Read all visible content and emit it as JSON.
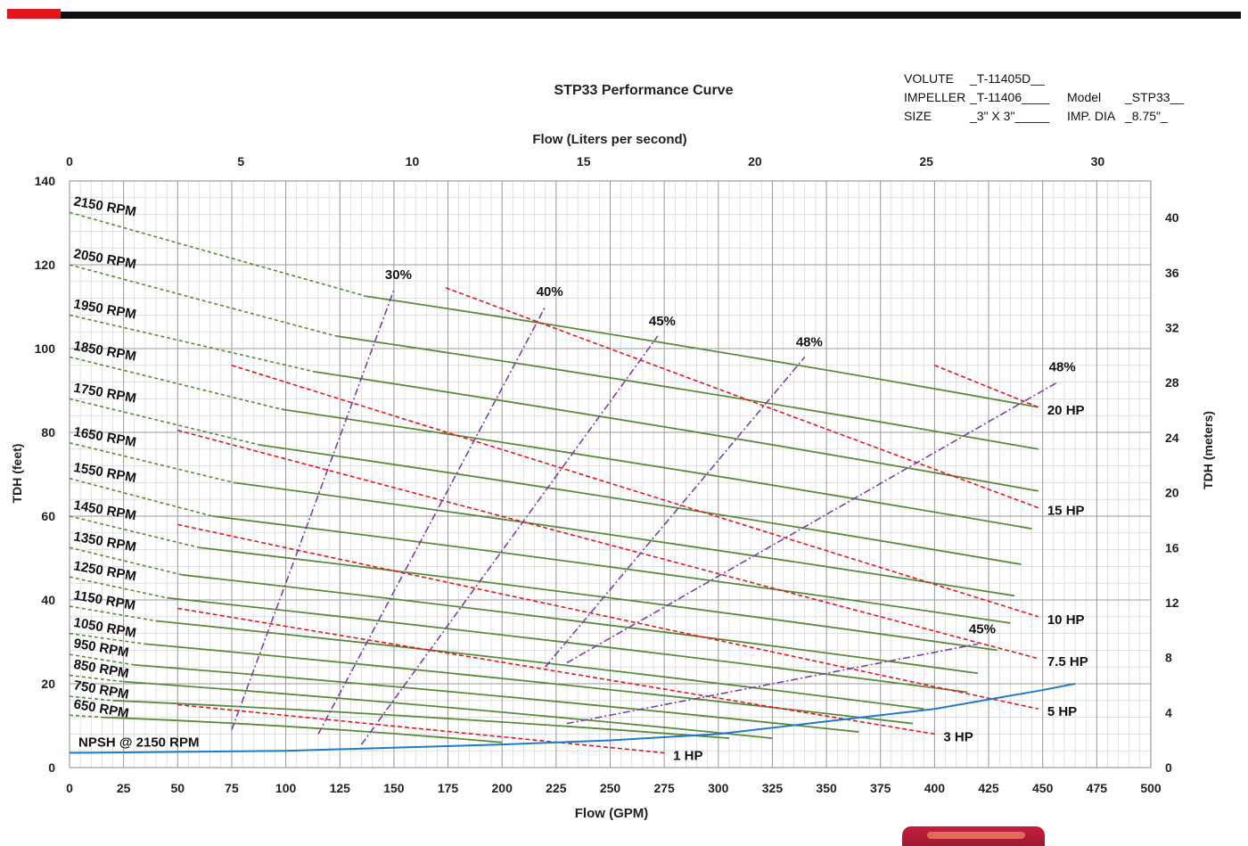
{
  "spec_block": {
    "volute_label": "VOLUTE",
    "volute_value": "_T-11405D__",
    "impeller_label": "IMPELLER",
    "impeller_value": "_T-11406____",
    "size_label": "SIZE",
    "size_value": "_3\" X 3\"_____",
    "model_label": "Model",
    "model_value": "_STP33__",
    "impdia_label": "IMP. DIA",
    "impdia_value": "_8.75\"_"
  },
  "colors": {
    "rpm_curve": "#5a8a3a",
    "hp_curve": "#e8151b",
    "efficiency_curve": "#7b3fa8",
    "npsh_curve": "#1f7ac8",
    "grid": "#cfcfcf",
    "grid_major": "#9a9a9a"
  },
  "chart_data": {
    "type": "line",
    "title": "STP33 Performance Curve",
    "xlabel": "Flow (GPM)",
    "xlabel_top": "Flow (Liters per second)",
    "ylabel": "TDH (feet)",
    "ylabel_right": "TDH (meters)",
    "xlim": [
      0,
      500
    ],
    "ylim": [
      0,
      140
    ],
    "xlim_top": [
      0,
      31.55
    ],
    "ylim_right": [
      0,
      42.67
    ],
    "x_ticks": [
      0,
      25,
      50,
      75,
      100,
      125,
      150,
      175,
      200,
      225,
      250,
      275,
      300,
      325,
      350,
      375,
      400,
      425,
      450,
      475,
      500
    ],
    "y_ticks": [
      0,
      20,
      40,
      60,
      80,
      100,
      120,
      140
    ],
    "x_ticks_top": [
      0,
      5,
      10,
      15,
      20,
      25,
      30
    ],
    "y_ticks_right": [
      0,
      4,
      8,
      12,
      16,
      20,
      24,
      28,
      32,
      36,
      40
    ],
    "grid": true,
    "rpm_curves": [
      {
        "name": "2150 RPM",
        "y0": 132.5,
        "x_solid": 137,
        "y_solid": 112.5,
        "x_end": 448,
        "y_end": 86
      },
      {
        "name": "2050 RPM",
        "y0": 120,
        "x_solid": 123,
        "y_solid": 103,
        "x_end": 448,
        "y_end": 76
      },
      {
        "name": "1950 RPM",
        "y0": 108,
        "x_solid": 113,
        "y_solid": 94.5,
        "x_end": 448,
        "y_end": 66
      },
      {
        "name": "1850 RPM",
        "y0": 98,
        "x_solid": 98,
        "y_solid": 85.5,
        "x_end": 445,
        "y_end": 57
      },
      {
        "name": "1750 RPM",
        "y0": 88,
        "x_solid": 88,
        "y_solid": 77,
        "x_end": 440,
        "y_end": 48.5
      },
      {
        "name": "1650 RPM",
        "y0": 77.5,
        "x_solid": 76,
        "y_solid": 68,
        "x_end": 437,
        "y_end": 41
      },
      {
        "name": "1550 RPM",
        "y0": 69,
        "x_solid": 66,
        "y_solid": 60,
        "x_end": 435,
        "y_end": 34.5
      },
      {
        "name": "1450 RPM",
        "y0": 60,
        "x_solid": 60,
        "y_solid": 52.5,
        "x_end": 429,
        "y_end": 28
      },
      {
        "name": "1350 RPM",
        "y0": 52.5,
        "x_solid": 52,
        "y_solid": 46,
        "x_end": 420,
        "y_end": 22.5
      },
      {
        "name": "1250 RPM",
        "y0": 45.5,
        "x_solid": 45,
        "y_solid": 40.5,
        "x_end": 415,
        "y_end": 18
      },
      {
        "name": "1150 RPM",
        "y0": 38.5,
        "x_solid": 40,
        "y_solid": 35,
        "x_end": 395,
        "y_end": 14
      },
      {
        "name": "1050  RPM",
        "y0": 32,
        "x_solid": 35,
        "y_solid": 29.5,
        "x_end": 390,
        "y_end": 10.5
      },
      {
        "name": "950 RPM",
        "y0": 27,
        "x_solid": 30,
        "y_solid": 24.5,
        "x_end": 365,
        "y_end": 8.5
      },
      {
        "name": "850 RPM",
        "y0": 22,
        "x_solid": 25,
        "y_solid": 20.5,
        "x_end": 325,
        "y_end": 7
      },
      {
        "name": "750 RPM",
        "y0": 17,
        "x_solid": 20,
        "y_solid": 16,
        "x_end": 305,
        "y_end": 7
      },
      {
        "name": "650 RPM",
        "y0": 12.5,
        "x_solid": 15,
        "y_solid": 12,
        "x_end": 200,
        "y_end": 6
      }
    ],
    "hp_curves": [
      {
        "name": "20 HP",
        "points": [
          [
            400,
            96
          ],
          [
            448,
            86
          ]
        ]
      },
      {
        "name": "15 HP",
        "points": [
          [
            174,
            114.5
          ],
          [
            448,
            62
          ]
        ]
      },
      {
        "name": "10 HP",
        "points": [
          [
            75,
            96
          ],
          [
            448,
            36
          ]
        ]
      },
      {
        "name": "7.5 HP",
        "points": [
          [
            50,
            80.5
          ],
          [
            448,
            26
          ]
        ]
      },
      {
        "name": "5 HP",
        "points": [
          [
            50,
            58
          ],
          [
            448,
            14
          ]
        ]
      },
      {
        "name": "3 HP",
        "points": [
          [
            50,
            38
          ],
          [
            400,
            8
          ]
        ]
      },
      {
        "name": "1 HP",
        "points": [
          [
            50,
            15
          ],
          [
            275,
            3.5
          ]
        ]
      }
    ],
    "efficiency_curves": [
      {
        "name": "30%",
        "points": [
          [
            75,
            9
          ],
          [
            150,
            114
          ]
        ]
      },
      {
        "name": "40%",
        "points": [
          [
            115,
            8
          ],
          [
            220,
            110
          ]
        ]
      },
      {
        "name": "45%",
        "points": [
          [
            135,
            5.5
          ],
          [
            272,
            103
          ]
        ]
      },
      {
        "name": "48%",
        "points": [
          [
            220,
            24
          ],
          [
            340,
            98
          ]
        ]
      },
      {
        "name": "48%",
        "points": [
          [
            230,
            25
          ],
          [
            457,
            92
          ]
        ]
      },
      {
        "name": "45%",
        "points": [
          [
            230,
            10.5
          ],
          [
            420,
            29.5
          ]
        ]
      }
    ],
    "npsh_curve": {
      "name": "NPSH @ 2150 RPM",
      "x": [
        0,
        100,
        200,
        250,
        300,
        350,
        400,
        450,
        465
      ],
      "y": [
        3.5,
        4,
        5.5,
        6.5,
        8,
        11,
        14,
        18.5,
        20
      ]
    }
  }
}
